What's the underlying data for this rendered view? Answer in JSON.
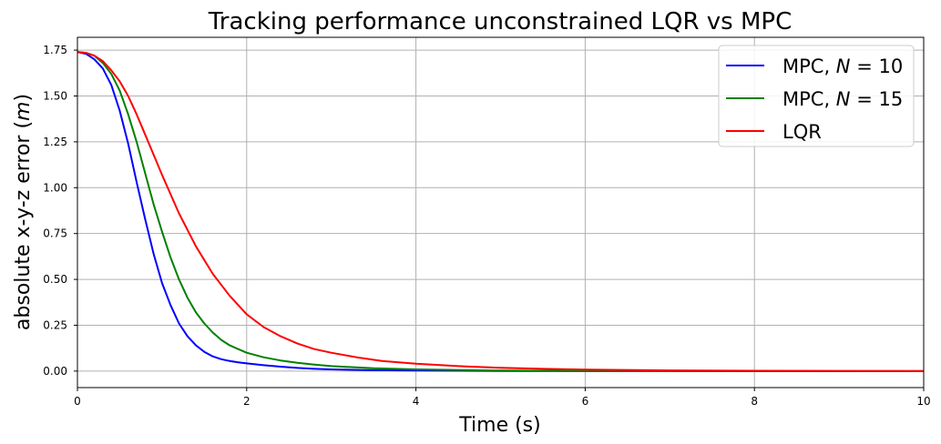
{
  "chart_data": {
    "type": "line",
    "title": "Tracking performance unconstrained LQR vs MPC",
    "xlabel": "Time (s)",
    "ylabel": "absolute x-y-z error (m)",
    "ylabel_parts": {
      "before": "absolute x-y-z error (",
      "var": "m",
      "after": ")"
    },
    "xlim": [
      0,
      10
    ],
    "ylim": [
      -0.09,
      1.82
    ],
    "xticks": [
      0,
      2,
      4,
      6,
      8,
      10
    ],
    "xtick_labels": [
      "0",
      "2",
      "4",
      "6",
      "8",
      "10"
    ],
    "yticks": [
      0.0,
      0.25,
      0.5,
      0.75,
      1.0,
      1.25,
      1.5,
      1.75
    ],
    "ytick_labels": [
      "0.00",
      "0.25",
      "0.50",
      "0.75",
      "1.00",
      "1.25",
      "1.50",
      "1.75"
    ],
    "grid": true,
    "legend_position": "top-right",
    "series": [
      {
        "name": "MPC, N = 10",
        "label_prefix": "MPC, ",
        "label_var": "N",
        "label_value": " = 10",
        "color": "#0000ff",
        "x": [
          0,
          0.1,
          0.2,
          0.3,
          0.4,
          0.5,
          0.6,
          0.7,
          0.8,
          0.9,
          1.0,
          1.1,
          1.2,
          1.3,
          1.4,
          1.5,
          1.6,
          1.7,
          1.8,
          1.9,
          2.0,
          2.2,
          2.4,
          2.6,
          2.8,
          3.0,
          3.5,
          4.0,
          5.0,
          6.0,
          8.0,
          10.0
        ],
        "y": [
          1.74,
          1.73,
          1.7,
          1.65,
          1.56,
          1.42,
          1.24,
          1.03,
          0.83,
          0.64,
          0.48,
          0.36,
          0.26,
          0.19,
          0.14,
          0.105,
          0.08,
          0.065,
          0.055,
          0.048,
          0.042,
          0.032,
          0.024,
          0.017,
          0.012,
          0.009,
          0.005,
          0.003,
          0.001,
          0.0,
          0.0,
          0.0
        ]
      },
      {
        "name": "MPC, N = 15",
        "label_prefix": "MPC, ",
        "label_var": "N",
        "label_value": " = 15",
        "color": "#008000",
        "x": [
          0,
          0.1,
          0.2,
          0.3,
          0.4,
          0.5,
          0.6,
          0.7,
          0.8,
          0.9,
          1.0,
          1.1,
          1.2,
          1.3,
          1.4,
          1.5,
          1.6,
          1.7,
          1.8,
          1.9,
          2.0,
          2.2,
          2.4,
          2.6,
          2.8,
          3.0,
          3.5,
          4.0,
          5.0,
          6.0,
          8.0,
          10.0
        ],
        "y": [
          1.74,
          1.735,
          1.72,
          1.68,
          1.62,
          1.53,
          1.4,
          1.25,
          1.08,
          0.91,
          0.76,
          0.62,
          0.5,
          0.4,
          0.32,
          0.26,
          0.21,
          0.17,
          0.14,
          0.12,
          0.1,
          0.075,
          0.058,
          0.045,
          0.035,
          0.027,
          0.015,
          0.009,
          0.003,
          0.001,
          0.0,
          0.0
        ]
      },
      {
        "name": "LQR",
        "label_prefix": "LQR",
        "label_var": "",
        "label_value": "",
        "color": "#ff0000",
        "x": [
          0,
          0.1,
          0.2,
          0.3,
          0.4,
          0.5,
          0.6,
          0.7,
          0.8,
          0.9,
          1.0,
          1.2,
          1.4,
          1.6,
          1.8,
          2.0,
          2.2,
          2.4,
          2.6,
          2.8,
          3.0,
          3.3,
          3.6,
          4.0,
          4.5,
          5.0,
          5.5,
          6.0,
          7.0,
          8.0,
          9.0,
          10.0
        ],
        "y": [
          1.74,
          1.735,
          1.72,
          1.69,
          1.64,
          1.58,
          1.5,
          1.4,
          1.29,
          1.18,
          1.07,
          0.86,
          0.68,
          0.53,
          0.41,
          0.31,
          0.24,
          0.19,
          0.15,
          0.12,
          0.1,
          0.075,
          0.055,
          0.04,
          0.027,
          0.018,
          0.012,
          0.008,
          0.004,
          0.002,
          0.001,
          0.0
        ]
      }
    ]
  }
}
